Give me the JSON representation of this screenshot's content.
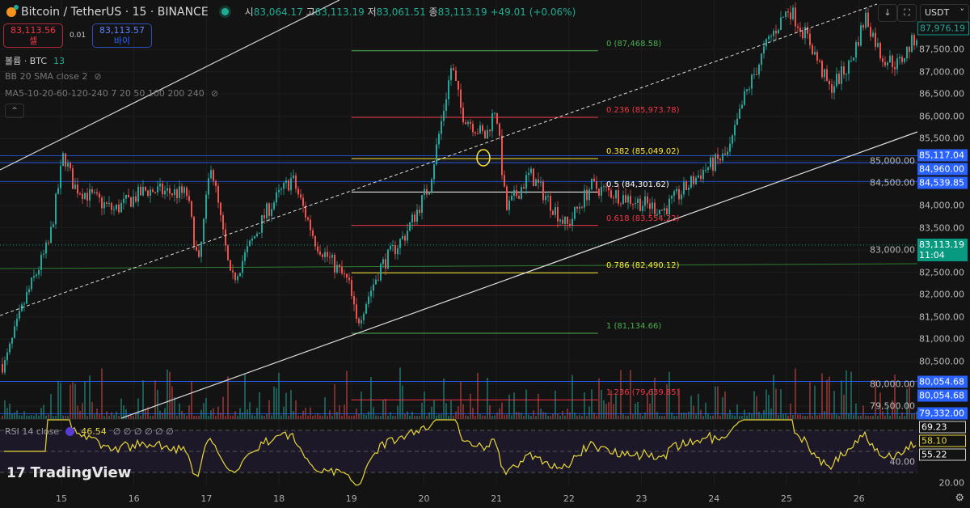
{
  "header": {
    "symbol": "Bitcoin / TetherUS · 15 · BINANCE",
    "open_label": "시",
    "open": "83,064.17",
    "high_label": "고",
    "high": "83,113.19",
    "low_label": "저",
    "low": "83,061.51",
    "close_label": "종",
    "close": "83,113.19",
    "change": "+49.01 (+0.06%)"
  },
  "trade": {
    "sell_price": "83,113.56",
    "sell_label": "셀",
    "spread": "0.01",
    "buy_price": "83,113.57",
    "buy_label": "바이"
  },
  "legend": {
    "volume": "볼륨 · BTC",
    "volume_value": "13",
    "bb": "BB 20 SMA close 2",
    "ma": "MA5-10-20-60-120-240 7 20 50 100 200 240",
    "rsi": "RSI 14 close",
    "rsi_value": "46.54",
    "rsi_extra": "∅ ∅ ∅ ∅ ∅ ∅"
  },
  "toolbar": {
    "currency": "USDT",
    "collapse": "^",
    "download": "↓",
    "fullscreen": "⛶"
  },
  "logo": "TradingView",
  "colors": {
    "up": "#26a69a",
    "down": "#ef5350",
    "tag_blue": "#2962ff",
    "current_green": "#089981",
    "rsi": "#e8d83a",
    "bg": "#131313"
  },
  "chart_data": {
    "type": "candlestick",
    "symbol": "BTCUSDT",
    "interval": "15",
    "x_ticks": [
      "15",
      "16",
      "17",
      "18",
      "19",
      "20",
      "21",
      "22",
      "23",
      "24",
      "25",
      "26"
    ],
    "y_ticks": [
      "87,500.00",
      "87,000.00",
      "86,500.00",
      "86,000.00",
      "85,500.00",
      "85,000.00",
      "84,500.00",
      "84,000.00",
      "83,500.00",
      "83,000.00",
      "82,500.00",
      "82,000.00",
      "81,500.00",
      "81,000.00",
      "80,500.00",
      "80,000.00",
      "79,500.00"
    ],
    "ylim": [
      79300,
      88600
    ],
    "price_path": [
      [
        14.21,
        80445
      ],
      [
        14.49,
        81896
      ],
      [
        14.82,
        83166
      ],
      [
        15.02,
        85160
      ],
      [
        15.16,
        84435
      ],
      [
        15.71,
        83890
      ],
      [
        16.16,
        84345
      ],
      [
        16.72,
        84254
      ],
      [
        16.88,
        82621
      ],
      [
        17.05,
        84979
      ],
      [
        17.33,
        82259
      ],
      [
        17.83,
        83890
      ],
      [
        18.17,
        84616
      ],
      [
        18.5,
        83166
      ],
      [
        18.95,
        82259
      ],
      [
        19.06,
        81352
      ],
      [
        19.39,
        82621
      ],
      [
        19.73,
        83347
      ],
      [
        20.06,
        84435
      ],
      [
        20.23,
        85886
      ],
      [
        20.37,
        87155
      ],
      [
        20.51,
        86067
      ],
      [
        20.84,
        85523
      ],
      [
        20.98,
        86249
      ],
      [
        21.12,
        83890
      ],
      [
        21.45,
        84707
      ],
      [
        21.96,
        83528
      ],
      [
        22.29,
        84435
      ],
      [
        22.63,
        84254
      ],
      [
        23.29,
        83890
      ],
      [
        23.85,
        84798
      ],
      [
        24.19,
        85160
      ],
      [
        24.41,
        86430
      ],
      [
        24.74,
        87700
      ],
      [
        25.02,
        88425
      ],
      [
        25.3,
        87700
      ],
      [
        25.58,
        86611
      ],
      [
        25.86,
        87155
      ],
      [
        26.08,
        88244
      ],
      [
        26.3,
        87337
      ],
      [
        26.53,
        87155
      ],
      [
        26.81,
        87880
      ]
    ],
    "last_price": "87,976.19",
    "current_price": {
      "value": "83,113.19",
      "countdown": "11:04"
    },
    "horizontal_lines": [
      {
        "price": 85117.04,
        "label": "85,117.04"
      },
      {
        "price": 84960.0,
        "label": "84,960.00"
      },
      {
        "price": 84539.85,
        "label": "84,539.85"
      },
      {
        "price": 80054.68,
        "label": "80,054.68"
      },
      {
        "price": 80054.68,
        "label": "80,054.68"
      },
      {
        "price": 79332.0,
        "label": "79,332.00"
      }
    ],
    "fibonacci": {
      "from_day": 19.0,
      "to_day": 22.4,
      "levels": [
        {
          "ratio": "0",
          "price": 87468.58,
          "label": "0 (87,468.58)",
          "color": "#4caf50"
        },
        {
          "ratio": "0.236",
          "price": 85973.78,
          "label": "0.236 (85,973.78)",
          "color": "#f23645"
        },
        {
          "ratio": "0.382",
          "price": 85049.02,
          "label": "0.382 (85,049.02)",
          "color": "#ffeb3b"
        },
        {
          "ratio": "0.5",
          "price": 84301.62,
          "label": "0.5 (84,301.62)",
          "color": "#ffffff"
        },
        {
          "ratio": "0.618",
          "price": 83554.22,
          "label": "0.618 (83,554.22)",
          "color": "#f23645"
        },
        {
          "ratio": "0.786",
          "price": 82490.12,
          "label": "0.786 (82,490.12)",
          "color": "#ffeb3b"
        },
        {
          "ratio": "1",
          "price": 81134.66,
          "label": "1 (81,134.66)",
          "color": "#4caf50"
        },
        {
          "ratio": "1.236",
          "price": 79639.85,
          "label": "1.236 (79,639.85)",
          "color": "#f23645"
        }
      ]
    },
    "rsi": {
      "period": 14,
      "value": 46.54,
      "ylim": [
        10,
        80
      ],
      "bands": [
        70,
        50,
        30
      ],
      "ticks": [
        "40.00",
        "20.00"
      ],
      "labels": [
        "69.23",
        "58.10",
        "55.22"
      ]
    }
  }
}
